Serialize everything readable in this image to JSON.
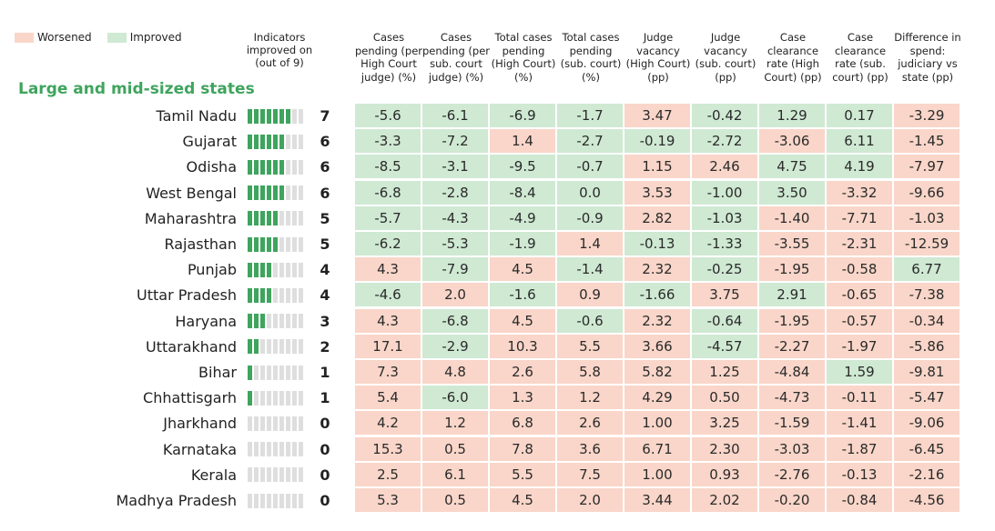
{
  "legend": [
    {
      "label": "Worsened",
      "color": "#f9d6c9"
    },
    {
      "label": "Improved",
      "color": "#cfe9d3"
    }
  ],
  "indicator_header": "Indicators improved on (out of 9)",
  "group_title": "Large and mid-sized states",
  "colors": {
    "worsened": "#f9d6c9",
    "improved": "#cfe9d3",
    "bar_on": "#3fa45e",
    "bar_off": "#dedede",
    "title": "#3fa45e"
  },
  "chart_data": {
    "type": "table",
    "indicator_total": 9,
    "columns": [
      "Cases pending (per High Court judge) (%)",
      "Cases pending (per sub. court judge) (%)",
      "Total cases pending (High Court) (%)",
      "Total cases pending (sub. court) (%)",
      "Judge vacancy (High Court) (pp)",
      "Judge vacancy (sub. court) (pp)",
      "Case clearance rate (High Court) (pp)",
      "Case clearance rate (sub. court) (pp)",
      "Difference in spend: judiciary vs state (pp)"
    ],
    "rows": [
      {
        "state": "Tamil Nadu",
        "improved": 7,
        "values": [
          "-5.6",
          "-6.1",
          "-6.9",
          "-1.7",
          "3.47",
          "-0.42",
          "1.29",
          "0.17",
          "-3.29"
        ],
        "status": [
          "I",
          "I",
          "I",
          "I",
          "W",
          "I",
          "I",
          "I",
          "W"
        ]
      },
      {
        "state": "Gujarat",
        "improved": 6,
        "values": [
          "-3.3",
          "-7.2",
          "1.4",
          "-2.7",
          "-0.19",
          "-2.72",
          "-3.06",
          "6.11",
          "-1.45"
        ],
        "status": [
          "I",
          "I",
          "W",
          "I",
          "I",
          "I",
          "W",
          "I",
          "W"
        ]
      },
      {
        "state": "Odisha",
        "improved": 6,
        "values": [
          "-8.5",
          "-3.1",
          "-9.5",
          "-0.7",
          "1.15",
          "2.46",
          "4.75",
          "4.19",
          "-7.97"
        ],
        "status": [
          "I",
          "I",
          "I",
          "I",
          "W",
          "W",
          "I",
          "I",
          "W"
        ]
      },
      {
        "state": "West Bengal",
        "improved": 6,
        "values": [
          "-6.8",
          "-2.8",
          "-8.4",
          "0.0",
          "3.53",
          "-1.00",
          "3.50",
          "-3.32",
          "-9.66"
        ],
        "status": [
          "I",
          "I",
          "I",
          "I",
          "W",
          "I",
          "I",
          "W",
          "W"
        ]
      },
      {
        "state": "Maharashtra",
        "improved": 5,
        "values": [
          "-5.7",
          "-4.3",
          "-4.9",
          "-0.9",
          "2.82",
          "-1.03",
          "-1.40",
          "-7.71",
          "-1.03"
        ],
        "status": [
          "I",
          "I",
          "I",
          "I",
          "W",
          "I",
          "W",
          "W",
          "W"
        ]
      },
      {
        "state": "Rajasthan",
        "improved": 5,
        "values": [
          "-6.2",
          "-5.3",
          "-1.9",
          "1.4",
          "-0.13",
          "-1.33",
          "-3.55",
          "-2.31",
          "-12.59"
        ],
        "status": [
          "I",
          "I",
          "I",
          "W",
          "I",
          "I",
          "W",
          "W",
          "W"
        ]
      },
      {
        "state": "Punjab",
        "improved": 4,
        "values": [
          "4.3",
          "-7.9",
          "4.5",
          "-1.4",
          "2.32",
          "-0.25",
          "-1.95",
          "-0.58",
          "6.77"
        ],
        "status": [
          "W",
          "I",
          "W",
          "I",
          "W",
          "I",
          "W",
          "W",
          "I"
        ]
      },
      {
        "state": "Uttar Pradesh",
        "improved": 4,
        "values": [
          "-4.6",
          "2.0",
          "-1.6",
          "0.9",
          "-1.66",
          "3.75",
          "2.91",
          "-0.65",
          "-7.38"
        ],
        "status": [
          "I",
          "W",
          "I",
          "W",
          "I",
          "W",
          "I",
          "W",
          "W"
        ]
      },
      {
        "state": "Haryana",
        "improved": 3,
        "values": [
          "4.3",
          "-6.8",
          "4.5",
          "-0.6",
          "2.32",
          "-0.64",
          "-1.95",
          "-0.57",
          "-0.34"
        ],
        "status": [
          "W",
          "I",
          "W",
          "I",
          "W",
          "I",
          "W",
          "W",
          "W"
        ]
      },
      {
        "state": "Uttarakhand",
        "improved": 2,
        "values": [
          "17.1",
          "-2.9",
          "10.3",
          "5.5",
          "3.66",
          "-4.57",
          "-2.27",
          "-1.97",
          "-5.86"
        ],
        "status": [
          "W",
          "I",
          "W",
          "W",
          "W",
          "I",
          "W",
          "W",
          "W"
        ]
      },
      {
        "state": "Bihar",
        "improved": 1,
        "values": [
          "7.3",
          "4.8",
          "2.6",
          "5.8",
          "5.82",
          "1.25",
          "-4.84",
          "1.59",
          "-9.81"
        ],
        "status": [
          "W",
          "W",
          "W",
          "W",
          "W",
          "W",
          "W",
          "I",
          "W"
        ]
      },
      {
        "state": "Chhattisgarh",
        "improved": 1,
        "values": [
          "5.4",
          "-6.0",
          "1.3",
          "1.2",
          "4.29",
          "0.50",
          "-4.73",
          "-0.11",
          "-5.47"
        ],
        "status": [
          "W",
          "I",
          "W",
          "W",
          "W",
          "W",
          "W",
          "W",
          "W"
        ]
      },
      {
        "state": "Jharkhand",
        "improved": 0,
        "values": [
          "4.2",
          "1.2",
          "6.8",
          "2.6",
          "1.00",
          "3.25",
          "-1.59",
          "-1.41",
          "-9.06"
        ],
        "status": [
          "W",
          "W",
          "W",
          "W",
          "W",
          "W",
          "W",
          "W",
          "W"
        ]
      },
      {
        "state": "Karnataka",
        "improved": 0,
        "values": [
          "15.3",
          "0.5",
          "7.8",
          "3.6",
          "6.71",
          "2.30",
          "-3.03",
          "-1.87",
          "-6.45"
        ],
        "status": [
          "W",
          "W",
          "W",
          "W",
          "W",
          "W",
          "W",
          "W",
          "W"
        ]
      },
      {
        "state": "Kerala",
        "improved": 0,
        "values": [
          "2.5",
          "6.1",
          "5.5",
          "7.5",
          "1.00",
          "0.93",
          "-2.76",
          "-0.13",
          "-2.16"
        ],
        "status": [
          "W",
          "W",
          "W",
          "W",
          "W",
          "W",
          "W",
          "W",
          "W"
        ]
      },
      {
        "state": "Madhya Pradesh",
        "improved": 0,
        "values": [
          "5.3",
          "0.5",
          "4.5",
          "2.0",
          "3.44",
          "2.02",
          "-0.20",
          "-0.84",
          "-4.56"
        ],
        "status": [
          "W",
          "W",
          "W",
          "W",
          "W",
          "W",
          "W",
          "W",
          "W"
        ]
      }
    ]
  }
}
